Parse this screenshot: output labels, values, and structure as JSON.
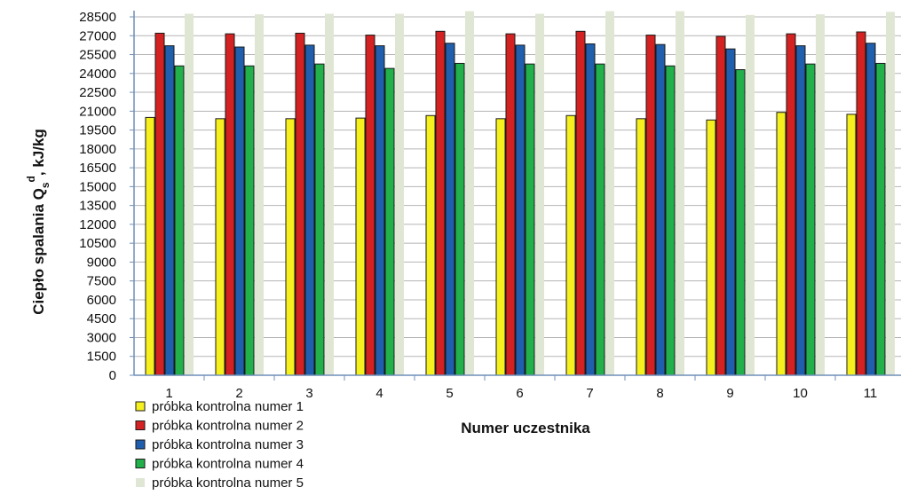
{
  "chart_data": {
    "type": "bar",
    "xlabel": "Numer uczestnika",
    "ylabel_main": "Ciepło spalania Q",
    "ylabel_sub": "s",
    "ylabel_sup": "d",
    "ylabel_unit": ", kJ/kg",
    "categories": [
      "1",
      "2",
      "3",
      "4",
      "5",
      "6",
      "7",
      "8",
      "9",
      "10",
      "11"
    ],
    "ylim": [
      0,
      28500
    ],
    "yticks": [
      "0",
      "1500",
      "3000",
      "4500",
      "6000",
      "7500",
      "9000",
      "10500",
      "12000",
      "13500",
      "15000",
      "16500",
      "18000",
      "19500",
      "21000",
      "22500",
      "24000",
      "25500",
      "27000",
      "28500"
    ],
    "grid": true,
    "legend_position": "bottom-left",
    "series": [
      {
        "name": "próbka kontrolna numer 1",
        "color": "#f5f01e",
        "values": [
          20500,
          20400,
          20400,
          20450,
          20650,
          20400,
          20650,
          20400,
          20300,
          20900,
          20750
        ]
      },
      {
        "name": "próbka kontrolna numer 2",
        "color": "#d42121",
        "values": [
          27200,
          27150,
          27200,
          27050,
          27350,
          27150,
          27350,
          27050,
          26950,
          27150,
          27300
        ]
      },
      {
        "name": "próbka kontrolna numer 3",
        "color": "#1f5fae",
        "values": [
          26200,
          26100,
          26250,
          26200,
          26400,
          26250,
          26350,
          26300,
          25950,
          26200,
          26400
        ]
      },
      {
        "name": "próbka kontrolna numer 4",
        "color": "#21b04a",
        "values": [
          24600,
          24600,
          24750,
          24400,
          24800,
          24750,
          24750,
          24600,
          24300,
          24750,
          24800
        ]
      },
      {
        "name": "próbka kontrolna numer 5",
        "color": "#e0e6d4",
        "values": [
          28750,
          28700,
          28750,
          28750,
          28950,
          28750,
          28950,
          28950,
          28650,
          28700,
          28900
        ]
      }
    ]
  }
}
